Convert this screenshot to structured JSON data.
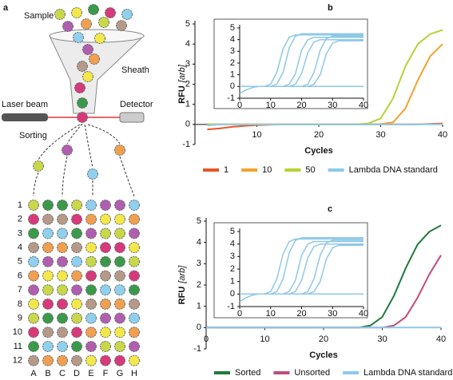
{
  "diagram": {
    "panel_label": "a",
    "labels": {
      "sample": "Sample",
      "sheath": "Sheath",
      "laser": "Laser beam",
      "detector": "Detector",
      "sorting": "Sorting"
    },
    "rows": [
      "1",
      "2",
      "3",
      "4",
      "5",
      "6",
      "7",
      "8",
      "9",
      "10",
      "11",
      "12"
    ],
    "columns": [
      "A",
      "B",
      "C",
      "D",
      "E",
      "F",
      "G",
      "H"
    ]
  },
  "chart_data": [
    {
      "type": "line",
      "panel_label": "b",
      "xlabel": "Cycles",
      "ylabel": "RFU",
      "ylabel_unit": "[arb]",
      "x": [
        2,
        4,
        6,
        8,
        10,
        12,
        14,
        16,
        18,
        20,
        22,
        24,
        26,
        28,
        30,
        32,
        34,
        36,
        38,
        40
      ],
      "xlim": [
        0,
        40
      ],
      "xticks": [
        10,
        20,
        30,
        40
      ],
      "ylim": [
        -1,
        5
      ],
      "yticks": [
        -1,
        0,
        1,
        2,
        3,
        4,
        5
      ],
      "series": [
        {
          "name": "1",
          "color": "#e8542a",
          "values": [
            -0.25,
            -0.2,
            -0.12,
            -0.07,
            -0.04,
            -0.02,
            0,
            0,
            0,
            0,
            0,
            0,
            0,
            0,
            0,
            0,
            0,
            0,
            0.02,
            0.05
          ]
        },
        {
          "name": "10",
          "color": "#f4a12b",
          "values": [
            0,
            0,
            0,
            0,
            0,
            0,
            0,
            0,
            0,
            0,
            0,
            0,
            0,
            0,
            0.02,
            0.1,
            0.8,
            2.2,
            3.4,
            4.0
          ]
        },
        {
          "name": "50",
          "color": "#b5d334",
          "values": [
            0,
            0,
            0,
            0,
            0,
            0,
            0,
            0,
            0,
            0,
            0,
            0,
            0,
            0.05,
            0.3,
            1.3,
            2.9,
            4.0,
            4.5,
            4.7
          ]
        },
        {
          "name": "Lambda DNA standard",
          "color": "#8ec8e8",
          "values": [
            -0.05,
            0,
            0,
            0,
            0,
            0,
            0,
            0,
            0,
            0,
            0,
            0,
            0,
            0,
            0,
            0,
            0,
            0,
            0,
            0
          ]
        }
      ]
    },
    {
      "type": "line",
      "x": [
        0,
        2,
        4,
        6,
        8,
        10,
        12,
        14,
        16,
        18,
        20,
        22,
        24,
        26,
        28,
        30,
        32,
        34,
        36,
        38,
        40
      ],
      "xlim": [
        0,
        40
      ],
      "xticks": [
        0,
        10,
        20,
        30,
        40
      ],
      "ylim": [
        -1,
        5
      ],
      "yticks": [
        -1,
        0,
        1,
        2,
        3,
        4,
        5
      ],
      "series": [
        {
          "color": "#8ec8e8",
          "values": [
            0,
            0,
            0,
            0,
            0,
            0.2,
            1.2,
            3.2,
            4.2,
            4.4,
            4.4,
            4.4,
            4.4,
            4.4,
            4.4,
            4.4,
            4.4,
            4.4,
            4.4,
            4.4,
            4.4
          ]
        },
        {
          "color": "#8ec8e8",
          "values": [
            0,
            0,
            0,
            0,
            0,
            0,
            0.2,
            1.2,
            3.3,
            4.3,
            4.5,
            4.5,
            4.5,
            4.5,
            4.5,
            4.5,
            4.5,
            4.5,
            4.5,
            4.5,
            4.5
          ]
        },
        {
          "color": "#8ec8e8",
          "values": [
            0,
            0,
            0,
            0,
            0,
            0,
            0,
            0,
            0.2,
            1.1,
            3.1,
            4.0,
            4.2,
            4.2,
            4.2,
            4.2,
            4.2,
            4.2,
            4.2,
            4.2,
            4.2
          ]
        },
        {
          "color": "#8ec8e8",
          "values": [
            0,
            0,
            0,
            0,
            0,
            0,
            0,
            0,
            0,
            0.2,
            1.1,
            2.9,
            3.8,
            4.0,
            4.0,
            4.0,
            4.0,
            4.0,
            4.0,
            4.0,
            4.0
          ]
        },
        {
          "color": "#8ec8e8",
          "values": [
            0,
            0,
            0,
            0,
            0,
            0,
            0,
            0,
            0,
            0,
            0,
            0.2,
            1.2,
            3.1,
            4.1,
            4.3,
            4.3,
            4.3,
            4.3,
            4.3,
            4.3
          ]
        },
        {
          "color": "#8ec8e8",
          "values": [
            0,
            0,
            0,
            0,
            0,
            0,
            0,
            0,
            0,
            0,
            0,
            0,
            0.2,
            1.0,
            2.8,
            3.7,
            3.9,
            3.9,
            3.9,
            3.9,
            3.9
          ]
        },
        {
          "color": "#8ec8e8",
          "values": [
            -0.6,
            -0.3,
            -0.1,
            0,
            0,
            0,
            0,
            0,
            0,
            0,
            0,
            0,
            0,
            0,
            0,
            0,
            0,
            0,
            0,
            0,
            0
          ]
        }
      ]
    },
    {
      "type": "line",
      "panel_label": "c",
      "xlabel": "Cycles",
      "ylabel": "RFU",
      "ylabel_unit": "[arb]",
      "x": [
        0,
        2,
        4,
        6,
        8,
        10,
        12,
        14,
        16,
        18,
        20,
        22,
        24,
        26,
        28,
        30,
        32,
        34,
        36,
        38,
        40
      ],
      "xlim": [
        0,
        40
      ],
      "xticks": [
        0,
        10,
        20,
        30,
        40
      ],
      "ylim": [
        -1,
        5
      ],
      "yticks": [
        -1,
        0,
        1,
        2,
        3,
        4,
        5
      ],
      "series": [
        {
          "name": "Sorted",
          "color": "#1e7a3c",
          "values": [
            0,
            0,
            0,
            0,
            0,
            0,
            0,
            0,
            0,
            0,
            0,
            0,
            0,
            0,
            0.1,
            0.5,
            1.5,
            2.8,
            3.9,
            4.5,
            4.8
          ]
        },
        {
          "name": "Unsorted",
          "color": "#c44a7e",
          "values": [
            0,
            0,
            0,
            0,
            0,
            0,
            0,
            0,
            0,
            0,
            0,
            0,
            0,
            0,
            0,
            0,
            0.1,
            0.5,
            1.4,
            2.5,
            3.4
          ]
        },
        {
          "name": "Lambda DNA standard",
          "color": "#8ec8e8",
          "values": [
            0,
            0,
            0,
            0,
            0,
            0,
            0,
            0,
            0,
            0,
            0,
            0,
            0,
            0,
            0,
            0,
            0,
            0,
            0,
            0,
            0
          ]
        }
      ]
    },
    {
      "type": "line",
      "x": [
        0,
        2,
        4,
        6,
        8,
        10,
        12,
        14,
        16,
        18,
        20,
        22,
        24,
        26,
        28,
        30,
        32,
        34,
        36,
        38,
        40
      ],
      "xlim": [
        0,
        40
      ],
      "xticks": [
        0,
        10,
        20,
        30,
        40
      ],
      "ylim": [
        -1,
        5
      ],
      "yticks": [
        -1,
        0,
        1,
        2,
        3,
        4,
        5
      ],
      "series": [
        {
          "color": "#8ec8e8",
          "values": [
            0,
            0,
            0,
            0,
            0,
            0.2,
            1.2,
            3.2,
            4.2,
            4.4,
            4.4,
            4.4,
            4.4,
            4.4,
            4.4,
            4.4,
            4.4,
            4.4,
            4.4,
            4.4,
            4.4
          ]
        },
        {
          "color": "#8ec8e8",
          "values": [
            0,
            0,
            0,
            0,
            0,
            0,
            0.2,
            1.2,
            3.3,
            4.3,
            4.5,
            4.5,
            4.5,
            4.5,
            4.5,
            4.5,
            4.5,
            4.5,
            4.5,
            4.5,
            4.5
          ]
        },
        {
          "color": "#8ec8e8",
          "values": [
            0,
            0,
            0,
            0,
            0,
            0,
            0,
            0,
            0.2,
            1.1,
            3.1,
            4.0,
            4.2,
            4.2,
            4.2,
            4.2,
            4.2,
            4.2,
            4.2,
            4.2,
            4.2
          ]
        },
        {
          "color": "#8ec8e8",
          "values": [
            0,
            0,
            0,
            0,
            0,
            0,
            0,
            0,
            0,
            0.2,
            1.1,
            2.9,
            3.8,
            4.0,
            4.0,
            4.0,
            4.0,
            4.0,
            4.0,
            4.0,
            4.0
          ]
        },
        {
          "color": "#8ec8e8",
          "values": [
            0,
            0,
            0,
            0,
            0,
            0,
            0,
            0,
            0,
            0,
            0,
            0.2,
            1.2,
            3.1,
            4.1,
            4.3,
            4.3,
            4.3,
            4.3,
            4.3,
            4.3
          ]
        },
        {
          "color": "#8ec8e8",
          "values": [
            0,
            0,
            0,
            0,
            0,
            0,
            0,
            0,
            0,
            0,
            0,
            0,
            0.2,
            1.0,
            2.8,
            3.7,
            3.9,
            3.9,
            3.9,
            3.9,
            3.9
          ]
        },
        {
          "color": "#8ec8e8",
          "values": [
            -0.6,
            -0.3,
            -0.1,
            0,
            0,
            0,
            0,
            0,
            0,
            0,
            0,
            0,
            0,
            0,
            0,
            0,
            0,
            0,
            0,
            0,
            0
          ]
        }
      ]
    }
  ]
}
